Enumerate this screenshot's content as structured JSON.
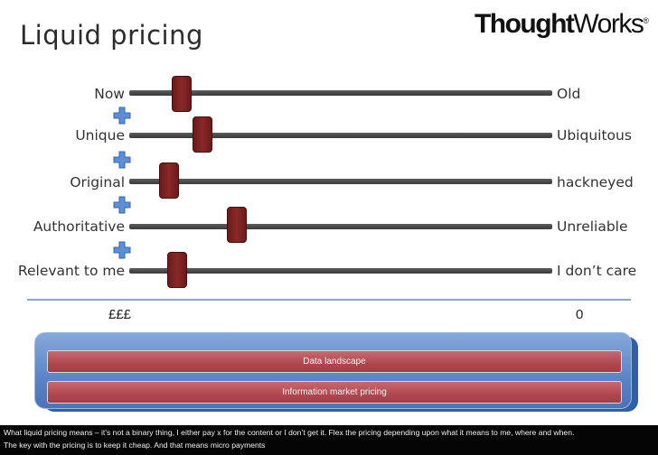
{
  "title": "Liquid pricing",
  "logo": {
    "bold_text": "Thought",
    "regular_text": "Works",
    "mark": "®"
  },
  "sliders": [
    {
      "left_label": "Now",
      "right_label": "Old",
      "value": 0.1
    },
    {
      "left_label": "Unique",
      "right_label": "Ubiquitous",
      "value": 0.15
    },
    {
      "left_label": "Original",
      "right_label": "hackneyed",
      "value": 0.07
    },
    {
      "left_label": "Authoritative",
      "right_label": "Unreliable",
      "value": 0.23
    },
    {
      "left_label": "Relevant to me",
      "right_label": "I don’t care",
      "value": 0.09
    }
  ],
  "price_scale": {
    "left": "£££",
    "right": "0"
  },
  "panel": {
    "bar1": "Data landscape",
    "bar2": "Information market pricing"
  },
  "footer": {
    "line1": "What liquid pricing means – it’s not a binary thing, I either pay x for the content or I don’t get it.  Flex the pricing depending upon what it means to me, where and when.",
    "line2": "The key with the pricing is to keep it cheap.  And that means micro payments"
  },
  "colors": {
    "thumb": "#7a2020",
    "bar": "#b0474f",
    "panel": "#5b84c7",
    "plus": "#5b8fd6"
  },
  "icons": {
    "plus": "plus-icon"
  }
}
